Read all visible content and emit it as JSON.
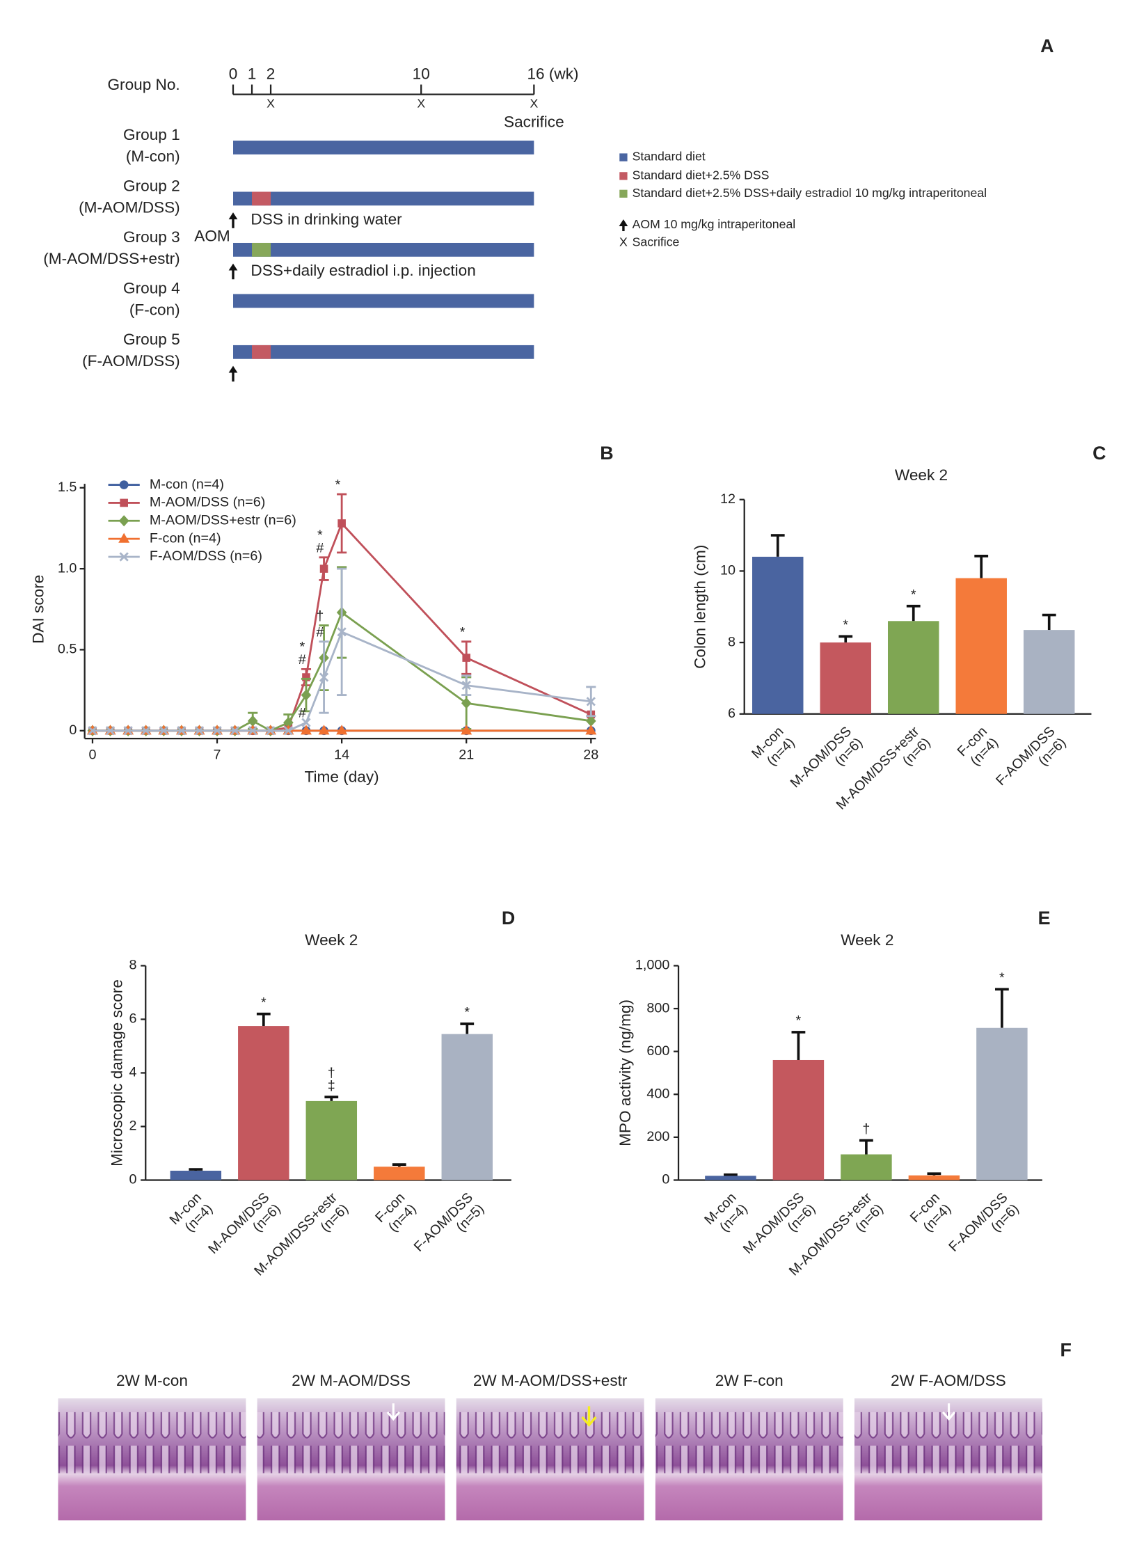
{
  "panel_a": {
    "panel": "A",
    "row_header": "Group No.",
    "xlim": [
      0,
      16
    ],
    "xticks": [
      0,
      1,
      2,
      10,
      {
        "value": 16,
        "label": "16 (wk)"
      }
    ],
    "sacrifice_weeks": [
      2,
      10,
      16
    ],
    "sacrifice_mark": "X",
    "sacrifice_label": "Sacrifice",
    "aom_label": "AOM",
    "groups": [
      {
        "name": "Group 1",
        "code": "(M-con)",
        "segments": [
          {
            "from": 0,
            "to": 16,
            "color": "#4a65a1"
          }
        ],
        "aom": false
      },
      {
        "name": "Group 2",
        "code": "(M-AOM/DSS)",
        "segments": [
          {
            "from": 0,
            "to": 16,
            "color": "#4a65a1"
          },
          {
            "from": 1,
            "to": 2,
            "color": "#c35a63"
          }
        ],
        "aom": true,
        "note": "DSS in drinking water"
      },
      {
        "name": "Group 3",
        "code": "(M-AOM/DSS+estr)",
        "segments": [
          {
            "from": 0,
            "to": 16,
            "color": "#4a65a1"
          },
          {
            "from": 1,
            "to": 2,
            "color": "#86a75a"
          }
        ],
        "aom": true,
        "note": "DSS+daily estradiol i.p. injection"
      },
      {
        "name": "Group 4",
        "code": "(F-con)",
        "segments": [
          {
            "from": 0,
            "to": 16,
            "color": "#4a65a1"
          }
        ],
        "aom": false
      },
      {
        "name": "Group 5",
        "code": "(F-AOM/DSS)",
        "segments": [
          {
            "from": 0,
            "to": 16,
            "color": "#4a65a1"
          },
          {
            "from": 1,
            "to": 2,
            "color": "#c35a63"
          }
        ],
        "aom": true
      }
    ],
    "legend": [
      {
        "label": "Standard diet",
        "color": "#4a65a1"
      },
      {
        "label": "Standard diet+2.5% DSS",
        "color": "#c35a63"
      },
      {
        "label": "Standard diet+2.5% DSS+daily estradiol 10 mg/kg intraperitoneal",
        "color": "#86a75a"
      },
      {
        "label": "AOM 10 mg/kg intraperitoneal",
        "marker": "arrow"
      },
      {
        "label": "Sacrifice",
        "marker": "cross"
      }
    ]
  },
  "chart_data": [
    {
      "type": "line",
      "panel": "B",
      "xlabel": "Time (day)",
      "ylabel": "DAI score",
      "x": [
        0,
        1,
        2,
        3,
        4,
        5,
        6,
        7,
        8,
        9,
        10,
        11,
        12,
        13,
        14,
        21,
        28
      ],
      "xlim": [
        0,
        28
      ],
      "xticks": [
        0,
        7,
        14,
        21,
        28
      ],
      "ylim": [
        0,
        1.5
      ],
      "yticks": [
        0,
        0.5,
        {
          "value": 1,
          "label": "1.0"
        },
        1.5
      ],
      "legend": "upper left",
      "series": [
        {
          "name": "M-con (n=4)",
          "color": "#3f5f9f",
          "marker": "circle",
          "values": [
            0,
            0,
            0,
            0,
            0,
            0,
            0,
            0,
            0,
            0,
            0,
            0,
            0,
            0,
            0,
            0,
            0
          ]
        },
        {
          "name": "M-AOM/DSS (n=6)",
          "color": "#c0505a",
          "marker": "square",
          "values": [
            0,
            0,
            0,
            0,
            0,
            0,
            0,
            0,
            0,
            0,
            0,
            0.02,
            0.33,
            1.0,
            1.28,
            0.45,
            0.1
          ],
          "errors": [
            null,
            null,
            null,
            null,
            null,
            null,
            null,
            null,
            null,
            null,
            null,
            null,
            0.05,
            0.07,
            0.18,
            0.1,
            null
          ],
          "annotations": [
            null,
            null,
            null,
            null,
            null,
            null,
            null,
            null,
            null,
            null,
            null,
            null,
            [
              "#",
              "*"
            ],
            [
              "#",
              "*"
            ],
            [
              "*"
            ],
            [
              "*"
            ],
            null
          ]
        },
        {
          "name": "M-AOM/DSS+estr (n=6)",
          "color": "#7aa050",
          "marker": "diamond",
          "values": [
            0,
            0,
            0,
            0,
            0,
            0,
            0,
            0,
            0,
            0.06,
            0,
            0.05,
            0.22,
            0.45,
            0.73,
            0.17,
            0.06
          ],
          "errors": [
            null,
            null,
            null,
            null,
            null,
            null,
            null,
            null,
            null,
            0.05,
            null,
            0.05,
            0.1,
            0.2,
            0.28,
            0.16,
            null
          ],
          "annotations": [
            null,
            null,
            null,
            null,
            null,
            null,
            null,
            null,
            null,
            null,
            null,
            null,
            null,
            [
              "†"
            ],
            null,
            null,
            null
          ]
        },
        {
          "name": "F-con (n=4)",
          "color": "#f07030",
          "marker": "triangle",
          "values": [
            0,
            0,
            0,
            0,
            0,
            0,
            0,
            0,
            0,
            0,
            0,
            0,
            0,
            0,
            0,
            0,
            0
          ]
        },
        {
          "name": "F-AOM/DSS (n=6)",
          "color": "#a8b4c8",
          "marker": "cross",
          "values": [
            0,
            0,
            0,
            0,
            0,
            0,
            0,
            0,
            0,
            0,
            0,
            0,
            0.05,
            0.33,
            0.61,
            0.28,
            0.18
          ],
          "errors": [
            null,
            null,
            null,
            null,
            null,
            null,
            null,
            null,
            null,
            null,
            null,
            null,
            null,
            0.22,
            0.39,
            0.06,
            0.09
          ],
          "annotations": [
            null,
            null,
            null,
            null,
            null,
            null,
            null,
            null,
            null,
            null,
            null,
            null,
            [
              "#"
            ],
            [
              "#"
            ],
            null,
            null,
            null
          ]
        }
      ]
    },
    {
      "type": "bar",
      "panel": "C",
      "title": "Week 2",
      "ylabel": "Colon length (cm)",
      "categories": [
        "M-con",
        "M-AOM/DSS",
        "M-AOM/DSS+estr",
        "F-con",
        "F-AOM/DSS"
      ],
      "category_notes": [
        "(n=4)",
        "(n=6)",
        "(n=6)",
        "(n=4)",
        "(n=6)"
      ],
      "values": [
        10.4,
        8.0,
        8.6,
        9.8,
        8.35
      ],
      "errors": [
        0.6,
        0.17,
        0.42,
        0.62,
        0.42
      ],
      "annotations": [
        null,
        [
          "*"
        ],
        [
          "*"
        ],
        null,
        null
      ],
      "colors": [
        "#4a64a0",
        "#c4585e",
        "#7fa653",
        "#f47a3a",
        "#a9b2c2"
      ],
      "ylim": [
        6,
        12
      ],
      "yticks": [
        6,
        8,
        10,
        12
      ]
    },
    {
      "type": "bar",
      "panel": "D",
      "title": "Week 2",
      "ylabel": "Microscopic damage score",
      "categories": [
        "M-con",
        "M-AOM/DSS",
        "M-AOM/DSS+estr",
        "F-con",
        "F-AOM/DSS"
      ],
      "category_notes": [
        "(n=4)",
        "(n=6)",
        "(n=6)",
        "(n=4)",
        "(n=5)"
      ],
      "values": [
        0.35,
        5.75,
        2.95,
        0.5,
        5.45
      ],
      "errors": [
        0.05,
        0.45,
        0.15,
        0.08,
        0.38
      ],
      "annotations": [
        null,
        [
          "*"
        ],
        [
          "‡",
          "†"
        ],
        null,
        [
          "*"
        ]
      ],
      "colors": [
        "#4a64a0",
        "#c4585e",
        "#7fa653",
        "#f47a3a",
        "#a9b2c2"
      ],
      "ylim": [
        0,
        8
      ],
      "yticks": [
        0,
        2,
        4,
        6,
        8
      ]
    },
    {
      "type": "bar",
      "panel": "E",
      "title": "Week 2",
      "ylabel": "MPO activity (ng/mg)",
      "categories": [
        "M-con",
        "M-AOM/DSS",
        "M-AOM/DSS+estr",
        "F-con",
        "F-AOM/DSS"
      ],
      "category_notes": [
        "(n=4)",
        "(n=6)",
        "(n=6)",
        "(n=4)",
        "(n=6)"
      ],
      "values": [
        20,
        560,
        120,
        22,
        710
      ],
      "errors": [
        5,
        130,
        65,
        8,
        180
      ],
      "annotations": [
        null,
        [
          "*"
        ],
        [
          "†"
        ],
        null,
        [
          "*"
        ]
      ],
      "colors": [
        "#4a64a0",
        "#c4585e",
        "#7fa653",
        "#f47a3a",
        "#a9b2c2"
      ],
      "ylim": [
        0,
        1000
      ],
      "yticks": [
        0,
        200,
        400,
        600,
        800,
        {
          "value": 1000,
          "label": "1,000"
        }
      ]
    }
  ],
  "panel_f": {
    "panel": "F",
    "captions": [
      "2W M-con",
      "2W M-AOM/DSS",
      "2W M-AOM/DSS+estr",
      "2W F-con",
      "2W F-AOM/DSS"
    ]
  }
}
